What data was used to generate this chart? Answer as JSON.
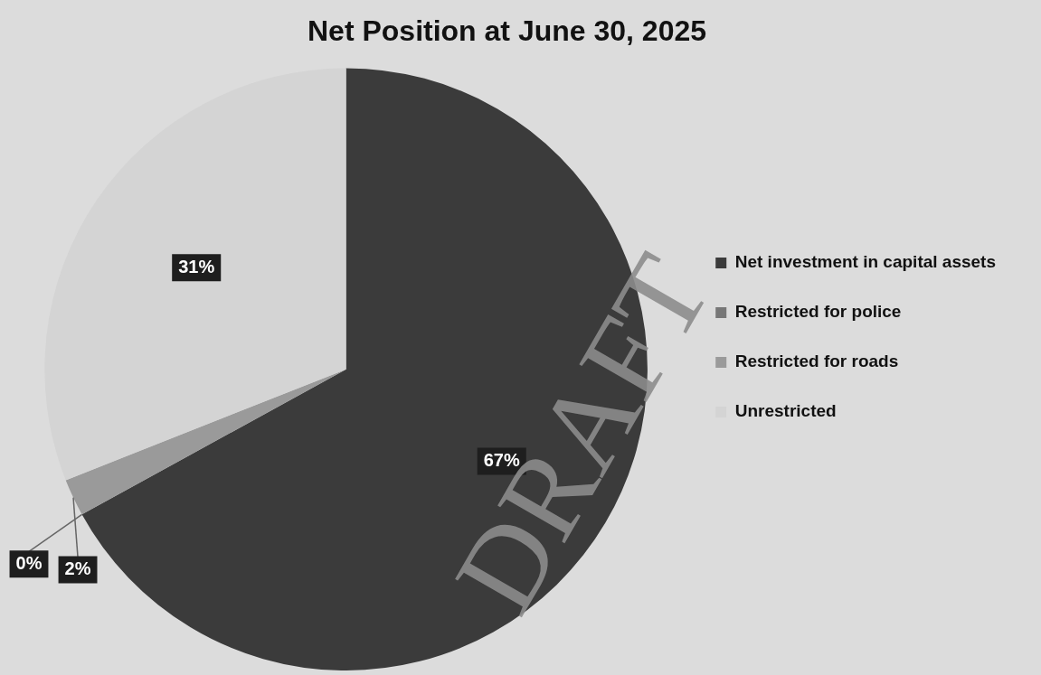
{
  "chart_data": {
    "type": "pie",
    "title": "Net Position at June 30, 2025",
    "categories": [
      "Net investment in capital assets",
      "Restricted for police",
      "Restricted for roads",
      "Unrestricted"
    ],
    "values": [
      67,
      0,
      2,
      31
    ],
    "value_labels": [
      "67%",
      "0%",
      "2%",
      "31%"
    ],
    "colors": [
      "#3b3b3b",
      "#777777",
      "#9a9a9a",
      "#d4d4d4"
    ],
    "legend": "right",
    "annotations": [
      "DRAFT"
    ]
  }
}
